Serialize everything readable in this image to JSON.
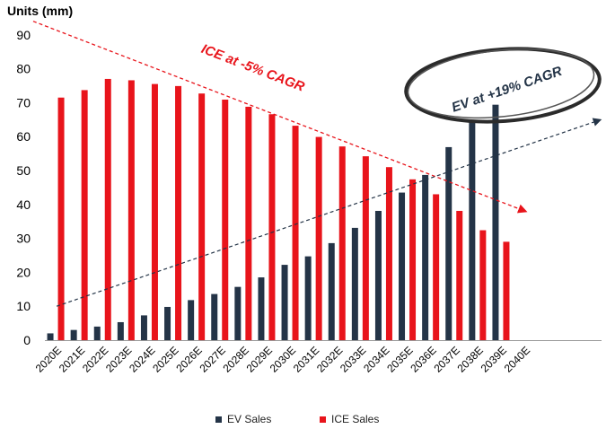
{
  "chart_data": {
    "type": "bar",
    "ylabel": "Units (mm)",
    "ylim": [
      0,
      90
    ],
    "yticks": [
      0,
      10,
      20,
      30,
      40,
      50,
      60,
      70,
      80,
      90
    ],
    "categories": [
      "2020E",
      "2021E",
      "2022E",
      "2023E",
      "2024E",
      "2025E",
      "2026E",
      "2027E",
      "2028E",
      "2029E",
      "2030E",
      "2031E",
      "2032E",
      "2033E",
      "2034E",
      "2035E",
      "2036E",
      "2037E",
      "2038E",
      "2039E",
      "2040E"
    ],
    "series": [
      {
        "name": "EV Sales",
        "color": "#243447",
        "values": [
          2,
          3,
          4,
          5.3,
          7.3,
          9.8,
          11.8,
          13.6,
          15.7,
          18.5,
          22.2,
          24.7,
          28.6,
          33.1,
          38.1,
          43.5,
          48.7,
          56.9,
          64.3,
          69.4,
          null
        ]
      },
      {
        "name": "ICE Sales",
        "color": "#e8141b",
        "values": [
          71.5,
          73.7,
          77,
          76.6,
          75.5,
          74.9,
          72.7,
          70.9,
          68.8,
          66.6,
          63.2,
          59.9,
          57.1,
          54.2,
          51,
          47.4,
          43,
          38.1,
          32.4,
          29,
          null
        ]
      }
    ],
    "annotations": [
      {
        "text": "ICE at -5% CAGR",
        "color": "#e8141b",
        "x_start": "2019E",
        "y_start": 94,
        "x_end": "2040E",
        "y_end": 38
      },
      {
        "text": "EV at +19% CAGR",
        "color": "#243447",
        "x_start": "2020E",
        "y_start": 10,
        "x_end": "2040E",
        "y_end": 76
      }
    ]
  }
}
